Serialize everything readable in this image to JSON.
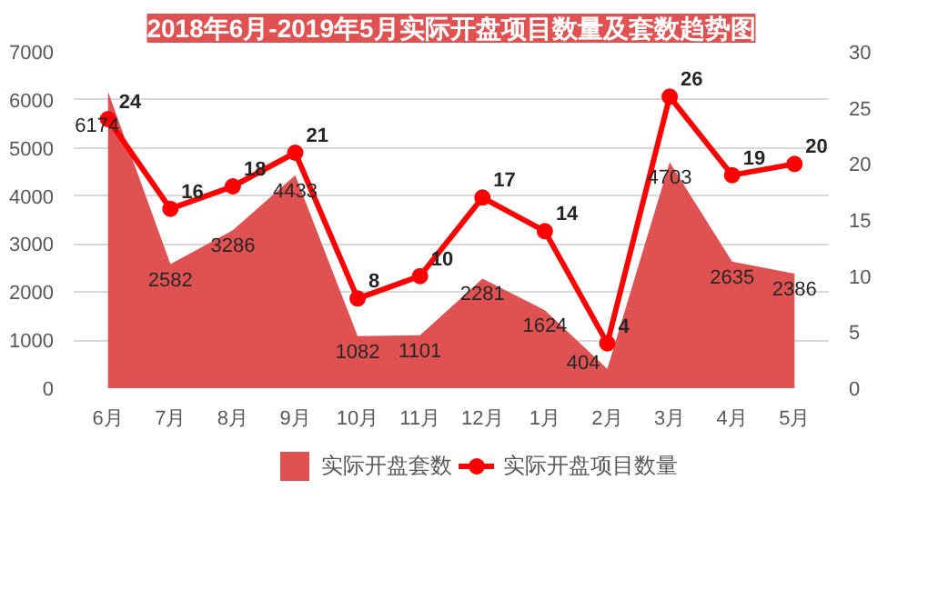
{
  "chart_data": {
    "type": "area",
    "title": "2018年6月-2019年5月实际开盘项目数量及套数趋势图",
    "categories": [
      "6月",
      "7月",
      "8月",
      "9月",
      "10月",
      "11月",
      "12月",
      "1月",
      "2月",
      "3月",
      "4月",
      "5月"
    ],
    "series": [
      {
        "name": "实际开盘套数",
        "color": "#e05252",
        "values": [
          6174,
          2582,
          3286,
          4433,
          1082,
          1101,
          2281,
          1624,
          404,
          4703,
          2635,
          2386
        ]
      },
      {
        "name": "实际开盘项目数量",
        "type": "line",
        "axis": "y2",
        "marker": "circle",
        "color": "#ff0000",
        "values": [
          24,
          16,
          18,
          21,
          8,
          10,
          17,
          14,
          4,
          26,
          19,
          20
        ]
      }
    ],
    "ylim": [
      0,
      7000
    ],
    "yticks": [
      0,
      1000,
      2000,
      3000,
      4000,
      5000,
      6000,
      7000
    ],
    "y2lim": [
      0,
      30
    ],
    "y2ticks": [
      0,
      5,
      10,
      15,
      20,
      25,
      30
    ],
    "grid": "y",
    "legend": "bottom",
    "data_labels": true
  }
}
